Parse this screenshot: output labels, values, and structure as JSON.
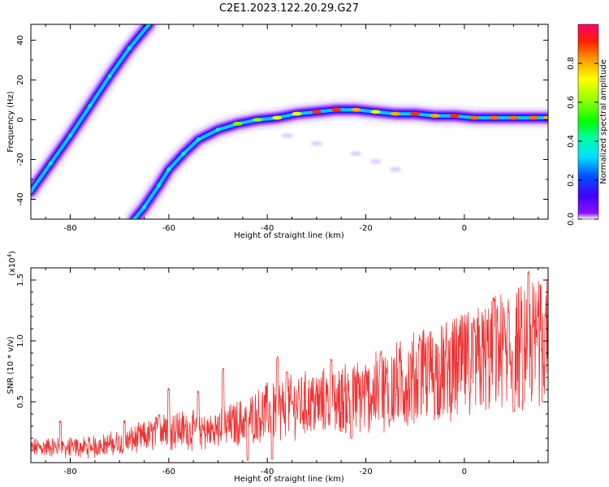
{
  "title": "C2E1.2023.122.20.29.G27",
  "colorbar": {
    "label": "Normalized spectral amplitude",
    "ticks": [
      "0.0",
      "0.2",
      "0.4",
      "0.6",
      "0.8"
    ],
    "tick_values": [
      0.0,
      0.2,
      0.4,
      0.6,
      0.8
    ]
  },
  "chart_data": [
    {
      "type": "heatmap",
      "xlabel": "Height of straight line (km)",
      "ylabel": "Frequency (Hz)",
      "xlim": [
        -88,
        17
      ],
      "ylim": [
        -50,
        48
      ],
      "xticks": [
        -80,
        -60,
        -40,
        -20,
        0
      ],
      "yticks": [
        -40,
        -20,
        0,
        20,
        40
      ],
      "xtick_labels": [
        "-80",
        "-60",
        "-40",
        "-20",
        "0"
      ],
      "ytick_labels": [
        "-40",
        "-20",
        "0",
        "20",
        "40"
      ],
      "tracks": [
        {
          "points": [
            [
              -88,
              -36
            ],
            [
              -84,
              -22
            ],
            [
              -80,
              -8
            ],
            [
              -76,
              7
            ],
            [
              -72,
              22
            ],
            [
              -68,
              36
            ],
            [
              -64,
              48
            ]
          ],
          "amplitude": [
            0.45,
            0.45,
            0.45,
            0.45,
            0.45,
            0.5,
            0.5
          ]
        },
        {
          "points": [
            [
              -67,
              -50
            ],
            [
              -65,
              -44
            ],
            [
              -62,
              -33
            ],
            [
              -60,
              -25
            ],
            [
              -57,
              -17
            ],
            [
              -54,
              -10
            ],
            [
              -50,
              -5
            ],
            [
              -46,
              -2
            ],
            [
              -42,
              0
            ],
            [
              -38,
              1
            ],
            [
              -34,
              3
            ],
            [
              -30,
              4
            ],
            [
              -26,
              5
            ],
            [
              -22,
              5
            ],
            [
              -18,
              4
            ],
            [
              -14,
              3
            ],
            [
              -10,
              3
            ],
            [
              -6,
              2
            ],
            [
              -2,
              2
            ],
            [
              2,
              1
            ],
            [
              6,
              1
            ],
            [
              10,
              1
            ],
            [
              14,
              1
            ],
            [
              17,
              1
            ]
          ],
          "amplitude": [
            0.4,
            0.4,
            0.4,
            0.4,
            0.4,
            0.4,
            0.5,
            0.6,
            0.6,
            0.7,
            0.7,
            0.9,
            0.9,
            0.8,
            0.7,
            0.8,
            0.9,
            0.8,
            0.9,
            0.85,
            0.85,
            0.85,
            0.85,
            0.8
          ]
        }
      ],
      "faint_tail": [
        [
          -36,
          -8
        ],
        [
          -30,
          -12
        ],
        [
          -22,
          -17
        ],
        [
          -18,
          -21
        ],
        [
          -14,
          -25
        ]
      ]
    },
    {
      "type": "line",
      "xlabel": "Height of straight line (km)",
      "ylabel": "SNR (10 * v/v)",
      "exponent_label": "(x10",
      "exponent_power": "4",
      "exponent_close": ")",
      "xlim": [
        -88,
        17
      ],
      "ylim": [
        0,
        1.6
      ],
      "xticks": [
        -80,
        -60,
        -40,
        -20,
        0
      ],
      "yticks": [
        0.5,
        1.0,
        1.5
      ],
      "xtick_labels": [
        "-80",
        "-60",
        "-40",
        "-20",
        "0"
      ],
      "ytick_labels": [
        "0.5",
        "1.0",
        "1.5"
      ],
      "color": "#ee3333",
      "trend": [
        [
          -88,
          0.12
        ],
        [
          -84,
          0.13
        ],
        [
          -80,
          0.12
        ],
        [
          -76,
          0.13
        ],
        [
          -72,
          0.15
        ],
        [
          -68,
          0.18
        ],
        [
          -64,
          0.22
        ],
        [
          -60,
          0.28
        ],
        [
          -56,
          0.27
        ],
        [
          -52,
          0.25
        ],
        [
          -48,
          0.3
        ],
        [
          -44,
          0.35
        ],
        [
          -40,
          0.42
        ],
        [
          -36,
          0.45
        ],
        [
          -32,
          0.48
        ],
        [
          -28,
          0.5
        ],
        [
          -24,
          0.52
        ],
        [
          -20,
          0.55
        ],
        [
          -16,
          0.6
        ],
        [
          -12,
          0.66
        ],
        [
          -8,
          0.72
        ],
        [
          -4,
          0.75
        ],
        [
          0,
          0.8
        ],
        [
          4,
          0.85
        ],
        [
          8,
          0.92
        ],
        [
          12,
          0.95
        ],
        [
          16,
          1.0
        ],
        [
          17,
          1.0
        ]
      ],
      "peaks": [
        [
          -82,
          0.35
        ],
        [
          -69,
          0.35
        ],
        [
          -62,
          0.4
        ],
        [
          -60,
          0.62
        ],
        [
          -54,
          0.6
        ],
        [
          -49,
          0.78
        ],
        [
          -38,
          0.88
        ],
        [
          -36,
          0.75
        ],
        [
          -27,
          0.85
        ],
        [
          -17,
          0.92
        ],
        [
          -9,
          1.02
        ],
        [
          2,
          1.1
        ],
        [
          6,
          1.35
        ],
        [
          9,
          1.25
        ],
        [
          13,
          1.58
        ],
        [
          15,
          1.2
        ],
        [
          16.5,
          1.22
        ]
      ],
      "dips": [
        [
          -44,
          0.02
        ],
        [
          -39,
          0.03
        ],
        [
          -23,
          0.2
        ],
        [
          -15,
          0.35
        ],
        [
          10,
          0.42
        ],
        [
          12,
          0.5
        ]
      ]
    }
  ]
}
